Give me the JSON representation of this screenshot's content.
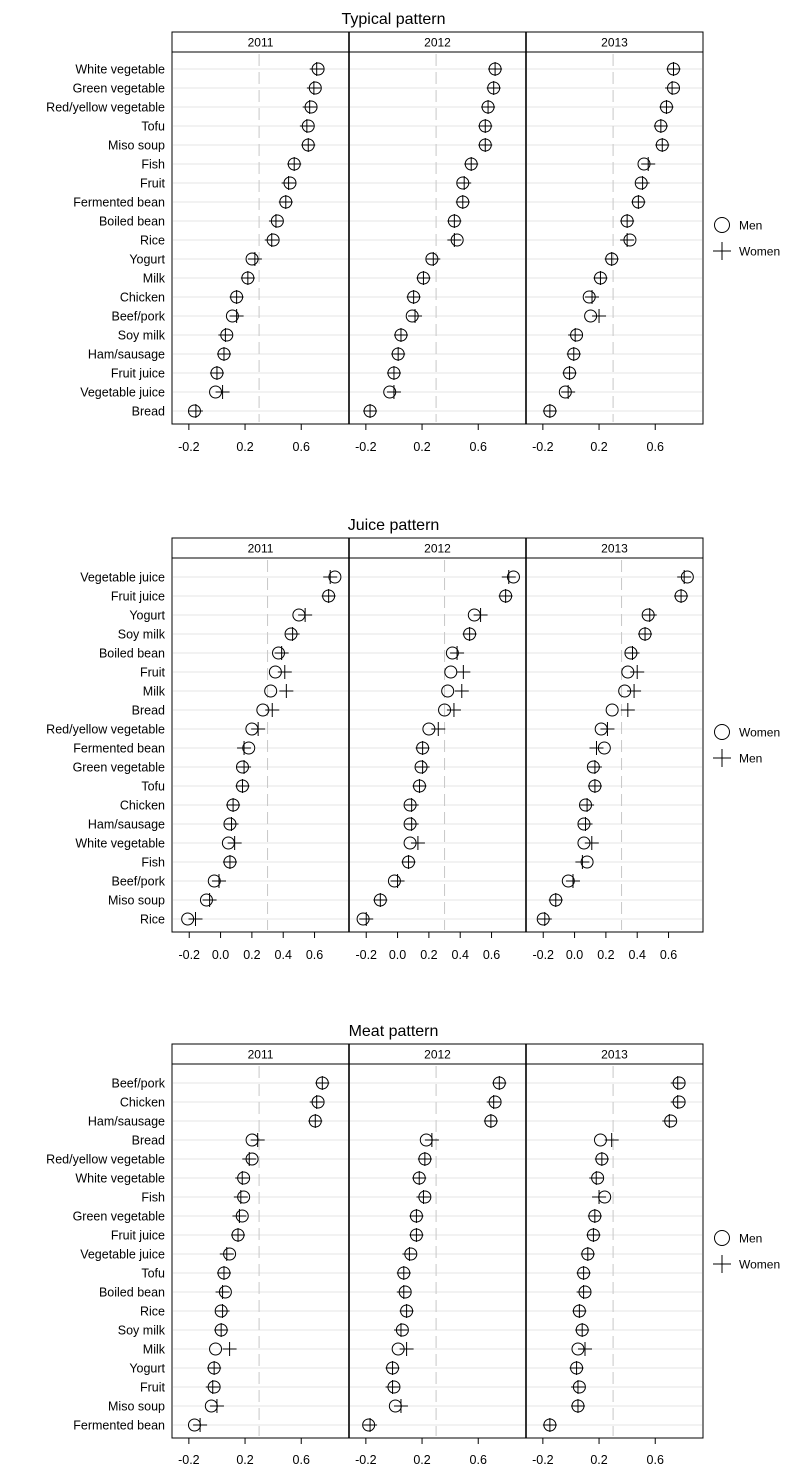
{
  "chart_data": [
    {
      "type": "scatter",
      "title": "Typical pattern",
      "panels": [
        "2011",
        "2012",
        "2013"
      ],
      "xlim": [
        -0.32,
        0.94
      ],
      "xticks": [
        "-0.2",
        "0.2",
        "0.6"
      ],
      "reference_x": 0.3,
      "legend": {
        "position": "right",
        "entries": [
          {
            "name": "Men",
            "marker": "circle"
          },
          {
            "name": "Women",
            "marker": "plus"
          }
        ]
      },
      "categories": [
        "White vegetable",
        "Green vegetable",
        "Red/yellow vegetable",
        "Tofu",
        "Miso soup",
        "Fish",
        "Fruit",
        "Fermented bean",
        "Boiled bean",
        "Rice",
        "Yogurt",
        "Milk",
        "Chicken",
        "Beef/pork",
        "Soy milk",
        "Ham/sausage",
        "Fruit juice",
        "Vegetable juice",
        "Bread"
      ],
      "series": [
        {
          "name": "Men",
          "values": [
            [
              0.72,
              0.7,
              0.67,
              0.65,
              0.65,
              0.55,
              0.52,
              0.49,
              0.43,
              0.4,
              0.25,
              0.22,
              0.14,
              0.11,
              0.07,
              0.05,
              0.0,
              -0.01,
              -0.16
            ],
            [
              0.72,
              0.71,
              0.67,
              0.65,
              0.65,
              0.55,
              0.49,
              0.49,
              0.43,
              0.45,
              0.27,
              0.21,
              0.14,
              0.13,
              0.05,
              0.03,
              0.0,
              -0.03,
              -0.17
            ],
            [
              0.73,
              0.73,
              0.68,
              0.64,
              0.65,
              0.52,
              0.5,
              0.48,
              0.4,
              0.42,
              0.29,
              0.21,
              0.13,
              0.14,
              0.04,
              0.02,
              -0.01,
              -0.04,
              -0.15
            ]
          ]
        },
        {
          "name": "Women",
          "values": [
            [
              0.71,
              0.69,
              0.66,
              0.64,
              0.65,
              0.55,
              0.51,
              0.49,
              0.42,
              0.39,
              0.27,
              0.22,
              0.14,
              0.14,
              0.06,
              0.05,
              0.0,
              0.04,
              -0.15
            ],
            [
              0.72,
              0.71,
              0.67,
              0.65,
              0.65,
              0.55,
              0.5,
              0.49,
              0.43,
              0.43,
              0.28,
              0.21,
              0.14,
              0.15,
              0.05,
              0.03,
              0.0,
              0.0,
              -0.17
            ],
            [
              0.73,
              0.72,
              0.68,
              0.64,
              0.65,
              0.55,
              0.51,
              0.48,
              0.4,
              0.4,
              0.29,
              0.21,
              0.15,
              0.2,
              0.03,
              0.02,
              -0.01,
              -0.02,
              -0.15
            ]
          ]
        }
      ]
    },
    {
      "type": "scatter",
      "title": "Juice pattern",
      "panels": [
        "2011",
        "2012",
        "2013"
      ],
      "xlim": [
        -0.31,
        0.82
      ],
      "xticks": [
        "-0.2",
        "0.0",
        "0.2",
        "0.4",
        "0.6"
      ],
      "reference_x": 0.3,
      "legend": {
        "position": "right",
        "entries": [
          {
            "name": "Women",
            "marker": "circle"
          },
          {
            "name": "Men",
            "marker": "plus"
          }
        ]
      },
      "categories": [
        "Vegetable juice",
        "Fruit juice",
        "Yogurt",
        "Soy milk",
        "Boiled bean",
        "Fruit",
        "Milk",
        "Bread",
        "Red/yellow vegetable",
        "Fermented bean",
        "Green vegetable",
        "Tofu",
        "Chicken",
        "Ham/sausage",
        "White vegetable",
        "Fish",
        "Beef/pork",
        "Miso soup",
        "Rice"
      ],
      "series": [
        {
          "name": "Women",
          "values": [
            [
              0.73,
              0.69,
              0.5,
              0.45,
              0.37,
              0.35,
              0.32,
              0.27,
              0.2,
              0.18,
              0.14,
              0.14,
              0.08,
              0.06,
              0.05,
              0.06,
              -0.04,
              -0.09,
              -0.21
            ],
            [
              0.74,
              0.69,
              0.49,
              0.46,
              0.35,
              0.34,
              0.32,
              0.3,
              0.2,
              0.16,
              0.15,
              0.14,
              0.08,
              0.08,
              0.08,
              0.07,
              -0.02,
              -0.11,
              -0.22
            ],
            [
              0.72,
              0.68,
              0.47,
              0.45,
              0.36,
              0.34,
              0.32,
              0.24,
              0.17,
              0.19,
              0.12,
              0.13,
              0.07,
              0.06,
              0.06,
              0.08,
              -0.04,
              -0.12,
              -0.2
            ]
          ]
        },
        {
          "name": "Men",
          "values": [
            [
              0.7,
              0.69,
              0.54,
              0.46,
              0.39,
              0.41,
              0.42,
              0.33,
              0.24,
              0.15,
              0.15,
              0.14,
              0.08,
              0.07,
              0.09,
              0.06,
              -0.01,
              -0.07,
              -0.16
            ],
            [
              0.71,
              0.69,
              0.53,
              0.46,
              0.38,
              0.42,
              0.41,
              0.36,
              0.26,
              0.16,
              0.16,
              0.14,
              0.09,
              0.09,
              0.13,
              0.07,
              0.0,
              -0.11,
              -0.2
            ],
            [
              0.7,
              0.68,
              0.48,
              0.45,
              0.37,
              0.4,
              0.38,
              0.34,
              0.21,
              0.14,
              0.13,
              0.13,
              0.08,
              0.07,
              0.11,
              0.05,
              -0.01,
              -0.12,
              -0.19
            ]
          ]
        }
      ]
    },
    {
      "type": "scatter",
      "title": "Meat pattern",
      "panels": [
        "2011",
        "2012",
        "2013"
      ],
      "xlim": [
        -0.32,
        0.94
      ],
      "xticks": [
        "-0.2",
        "0.2",
        "0.6"
      ],
      "reference_x": 0.3,
      "legend": {
        "position": "right",
        "entries": [
          {
            "name": "Men",
            "marker": "circle"
          },
          {
            "name": "Women",
            "marker": "plus"
          }
        ]
      },
      "categories": [
        "Beef/pork",
        "Chicken",
        "Ham/sausage",
        "Bread",
        "Red/yellow vegetable",
        "White vegetable",
        "Fish",
        "Green vegetable",
        "Fruit juice",
        "Vegetable juice",
        "Tofu",
        "Boiled bean",
        "Rice",
        "Soy milk",
        "Milk",
        "Yogurt",
        "Fruit",
        "Miso soup",
        "Fermented bean"
      ],
      "series": [
        {
          "name": "Men",
          "values": [
            [
              0.75,
              0.72,
              0.7,
              0.25,
              0.25,
              0.19,
              0.19,
              0.18,
              0.15,
              0.09,
              0.05,
              0.06,
              0.03,
              0.03,
              -0.01,
              -0.02,
              -0.02,
              -0.04,
              -0.16
            ],
            [
              0.75,
              0.72,
              0.69,
              0.23,
              0.22,
              0.18,
              0.22,
              0.16,
              0.16,
              0.12,
              0.07,
              0.08,
              0.09,
              0.06,
              0.03,
              -0.01,
              0.0,
              0.01,
              -0.18
            ],
            [
              0.77,
              0.77,
              0.71,
              0.21,
              0.22,
              0.19,
              0.24,
              0.17,
              0.16,
              0.12,
              0.09,
              0.1,
              0.06,
              0.08,
              0.05,
              0.04,
              0.06,
              0.05,
              -0.15
            ]
          ]
        },
        {
          "name": "Women",
          "values": [
            [
              0.75,
              0.71,
              0.7,
              0.29,
              0.23,
              0.18,
              0.17,
              0.16,
              0.15,
              0.07,
              0.05,
              0.04,
              0.04,
              0.03,
              0.09,
              -0.02,
              -0.03,
              0.0,
              -0.12
            ],
            [
              0.75,
              0.71,
              0.69,
              0.27,
              0.22,
              0.18,
              0.21,
              0.16,
              0.16,
              0.11,
              0.07,
              0.07,
              0.09,
              0.05,
              0.09,
              -0.01,
              -0.01,
              0.05,
              -0.17
            ],
            [
              0.76,
              0.76,
              0.7,
              0.29,
              0.22,
              0.18,
              0.2,
              0.17,
              0.16,
              0.12,
              0.09,
              0.09,
              0.06,
              0.08,
              0.1,
              0.04,
              0.05,
              0.05,
              -0.15
            ]
          ]
        }
      ]
    }
  ]
}
